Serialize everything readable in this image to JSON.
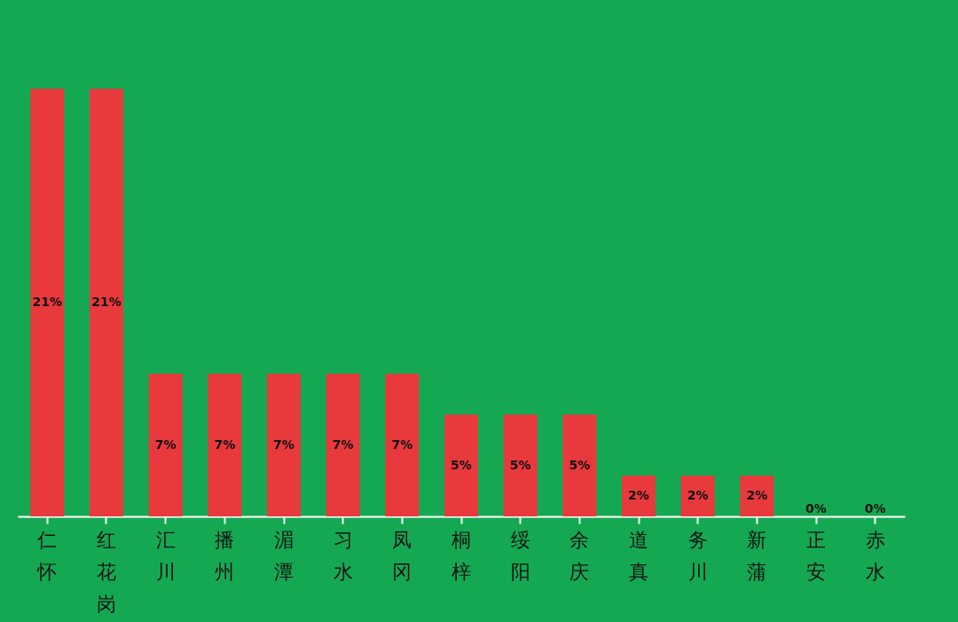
{
  "chart_data": {
    "type": "bar",
    "categories": [
      "仁怀",
      "红花岗",
      "汇川",
      "播州",
      "湄潭",
      "习水",
      "凤冈",
      "桐梓",
      "绥阳",
      "余庆",
      "道真",
      "务川",
      "新蒲",
      "正安",
      "赤水"
    ],
    "values": [
      21,
      21,
      7,
      7,
      7,
      7,
      7,
      5,
      5,
      5,
      2,
      2,
      2,
      0,
      0
    ],
    "value_labels": [
      "21%",
      "21%",
      "7%",
      "7%",
      "7%",
      "7%",
      "7%",
      "5%",
      "5%",
      "5%",
      "2%",
      "2%",
      "2%",
      "0%",
      "0%"
    ],
    "color": "#e8393c",
    "grid": false
  }
}
